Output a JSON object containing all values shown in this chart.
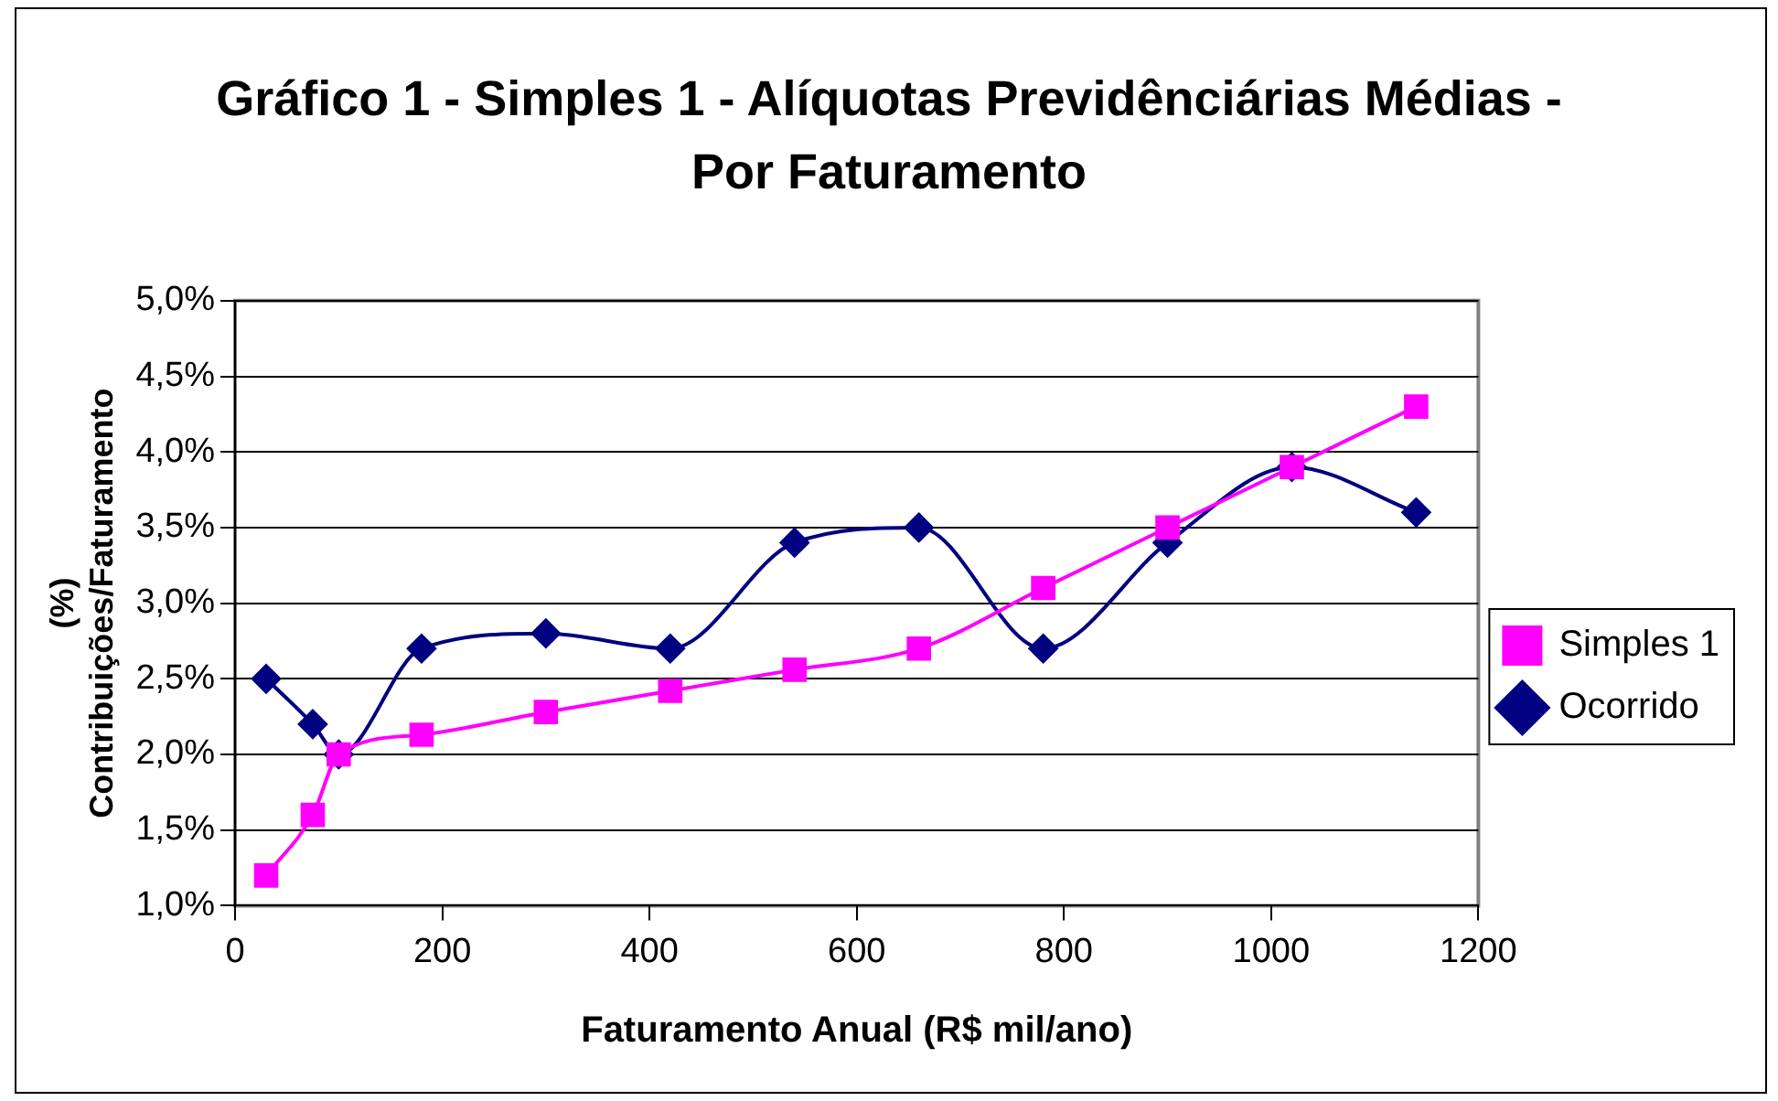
{
  "chart_data": {
    "type": "line",
    "title": "Gráfico 1 - Simples 1 - Alíquotas Previdênciárias Médias - Por Faturamento",
    "xlabel": "Faturamento Anual (R$ mil/ano)",
    "ylabel": "(%)\nContribuições/Faturamento",
    "x": [
      30,
      75,
      100,
      180,
      300,
      420,
      540,
      660,
      780,
      900,
      1020,
      1140
    ],
    "series": [
      {
        "name": "Ocorrido",
        "color": "#000080",
        "marker": "diamond",
        "values": [
          2.5,
          2.2,
          2.0,
          2.7,
          2.8,
          2.7,
          3.4,
          3.5,
          2.7,
          3.4,
          3.9,
          3.6
        ]
      },
      {
        "name": "Simples 1",
        "color": "#ff00ff",
        "marker": "square",
        "values": [
          1.2,
          1.6,
          2.0,
          2.13,
          2.28,
          2.42,
          2.56,
          2.7,
          3.1,
          3.5,
          3.9,
          4.3
        ]
      }
    ],
    "xlim": [
      0,
      1200
    ],
    "xticks": [
      0,
      200,
      400,
      600,
      800,
      1000,
      1200
    ],
    "ylim": [
      1,
      5
    ],
    "yticks": [
      {
        "value": 1,
        "label": "1,0%"
      },
      {
        "value": 1.5,
        "label": "1,5%"
      },
      {
        "value": 2,
        "label": "2,0%"
      },
      {
        "value": 2.5,
        "label": "2,5%"
      },
      {
        "value": 3,
        "label": "3,0%"
      },
      {
        "value": 3.5,
        "label": "3,5%"
      },
      {
        "value": 4,
        "label": "4,0%"
      },
      {
        "value": 4.5,
        "label": "4,5%"
      },
      {
        "value": 5,
        "label": "5,0%"
      }
    ],
    "grid": "y",
    "legend": "right"
  }
}
